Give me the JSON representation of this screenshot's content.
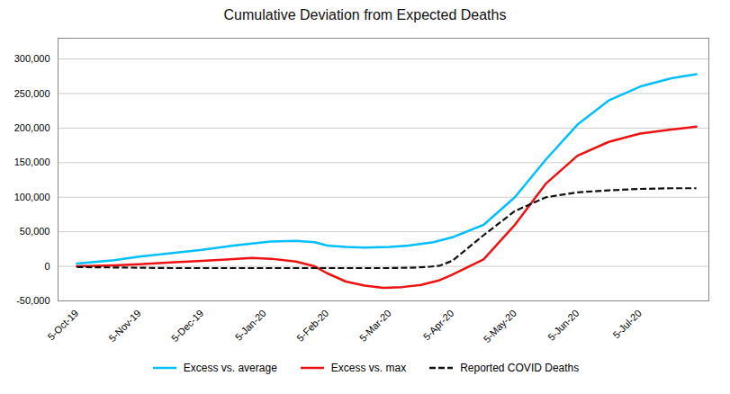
{
  "chart_data": {
    "type": "line",
    "title": "Cumulative Deviation from Expected Deaths",
    "xlim": [
      -0.3,
      10.1
    ],
    "xticks": [
      {
        "value": 0,
        "label": "5-Oct-19"
      },
      {
        "value": 1,
        "label": "5-Nov-19"
      },
      {
        "value": 2,
        "label": "5-Dec-19"
      },
      {
        "value": 3,
        "label": "5-Jan-20"
      },
      {
        "value": 4,
        "label": "5-Feb-20"
      },
      {
        "value": 5,
        "label": "5-Mar-20"
      },
      {
        "value": 6,
        "label": "5-Apr-20"
      },
      {
        "value": 7,
        "label": "5-May-20"
      },
      {
        "value": 8,
        "label": "5-Jun-20"
      },
      {
        "value": 9,
        "label": "5-Jul-20"
      }
    ],
    "ylim": [
      -50000,
      330000
    ],
    "yticks": [
      {
        "value": -50000,
        "label": "-50,000"
      },
      0,
      {
        "value": 50000,
        "label": "50,000"
      },
      {
        "value": 100000,
        "label": "100,000"
      },
      {
        "value": 150000,
        "label": "150,000"
      },
      {
        "value": 200000,
        "label": "200,000"
      },
      {
        "value": 250000,
        "label": "250,000"
      },
      {
        "value": 300000,
        "label": "300,000"
      }
    ],
    "grid": "y",
    "legend": "bottom",
    "series": [
      {
        "name": "Excess vs. average",
        "color": "#00BFFF",
        "line_style": "solid",
        "x": [
          0,
          0.6,
          1.0,
          1.5,
          2.0,
          2.5,
          2.8,
          3.1,
          3.5,
          3.8,
          4.0,
          4.3,
          4.6,
          5.0,
          5.3,
          5.7,
          6.0,
          6.5,
          7.0,
          7.5,
          8.0,
          8.5,
          9.0,
          9.5,
          9.9
        ],
        "values": [
          4000,
          9000,
          14000,
          19000,
          24000,
          30000,
          33000,
          36000,
          37000,
          35000,
          30000,
          28000,
          27000,
          28000,
          30000,
          35000,
          42000,
          60000,
          100000,
          155000,
          205000,
          240000,
          260000,
          272000,
          278000
        ]
      },
      {
        "name": "Excess vs. max",
        "color": "#EE1111",
        "line_style": "solid",
        "x": [
          0,
          0.6,
          1.0,
          1.5,
          2.0,
          2.5,
          2.8,
          3.1,
          3.5,
          3.8,
          4.0,
          4.3,
          4.6,
          4.9,
          5.2,
          5.5,
          5.8,
          6.0,
          6.5,
          7.0,
          7.5,
          8.0,
          8.5,
          9.0,
          9.5,
          9.9
        ],
        "values": [
          0,
          1500,
          3000,
          5500,
          8000,
          10500,
          12000,
          11000,
          7000,
          0,
          -10000,
          -22000,
          -28000,
          -31000,
          -30000,
          -27000,
          -20000,
          -12000,
          10000,
          60000,
          120000,
          160000,
          180000,
          192000,
          198000,
          202000
        ]
      },
      {
        "name": "Reported COVID Deaths",
        "color": "#111111",
        "line_style": "dashed",
        "x": [
          0,
          0.5,
          1.0,
          1.5,
          2.0,
          2.5,
          3.0,
          3.5,
          4.0,
          4.5,
          5.0,
          5.3,
          5.6,
          5.8,
          6.0,
          6.5,
          7.0,
          7.5,
          8.0,
          8.5,
          9.0,
          9.5,
          9.9
        ],
        "values": [
          -1000,
          -1500,
          -2000,
          -2500,
          -2500,
          -2500,
          -2500,
          -2500,
          -2500,
          -2500,
          -2500,
          -2000,
          -1000,
          1000,
          8000,
          45000,
          80000,
          100000,
          107000,
          110000,
          112000,
          113000,
          113000
        ]
      }
    ]
  }
}
